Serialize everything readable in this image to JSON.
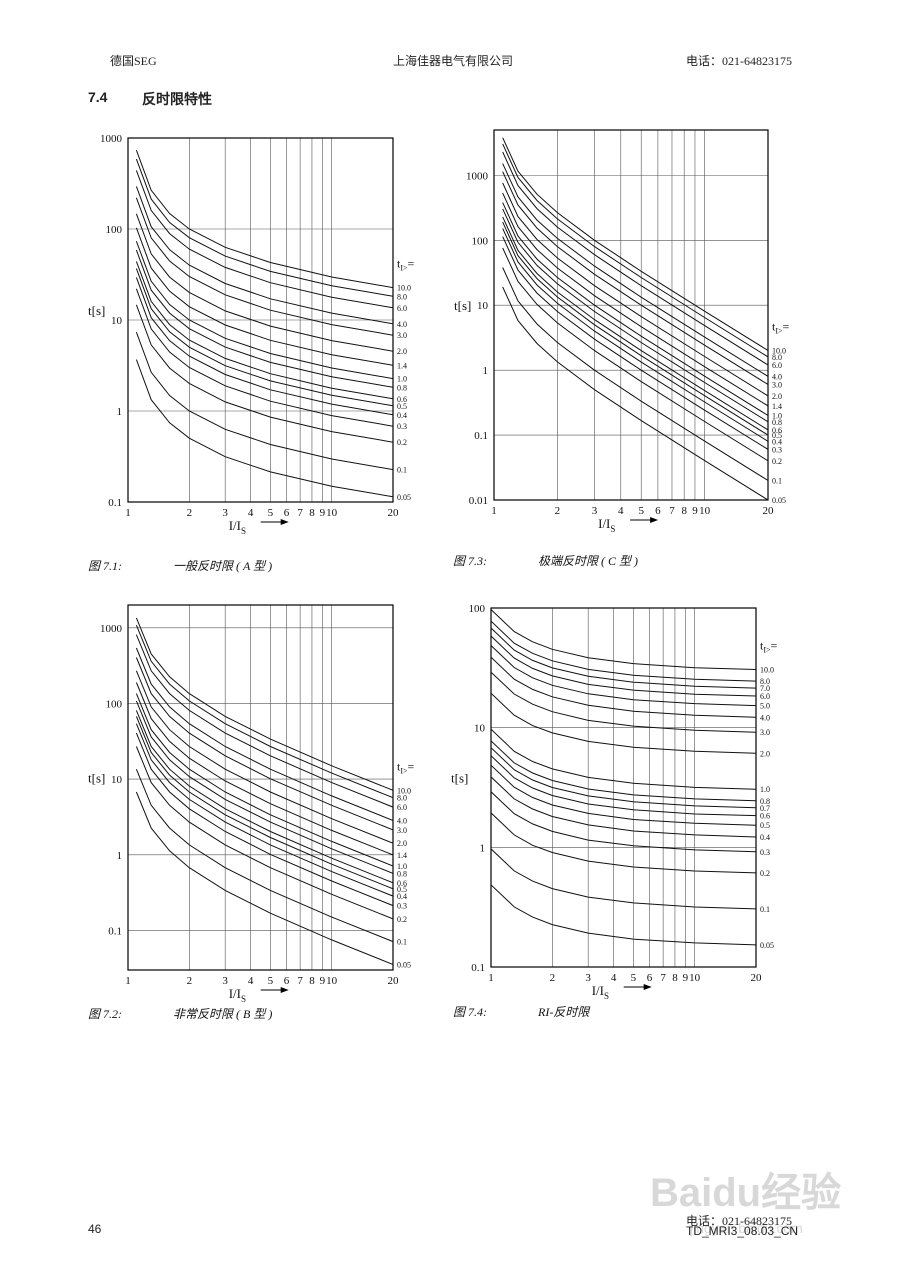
{
  "header": {
    "left": "德国SEG",
    "center": "上海佳器电气有限公司",
    "right": "电话：021-64823175"
  },
  "section": {
    "number": "7.4",
    "title": "反时限特性"
  },
  "footer": {
    "page": "46",
    "doc": "TD_MRI3_08.03_CN",
    "phone": "电话：021-64823175",
    "watermark": "Baidu经验",
    "watermark_url": "jingyan.baidu.com"
  },
  "chart_data": [
    {
      "type": "line",
      "caption_number": "图 7.1:",
      "caption_text": "一般反时限 ( A 型 )",
      "ylabel": "t[s]",
      "xlabel": {
        "base": "I/I",
        "sub": "S"
      },
      "legend_title": {
        "base": "t",
        "sub": "I>",
        "tail": "="
      },
      "log_x": true,
      "log_y": true,
      "grid": true,
      "color": "#111111",
      "xlim": [
        1,
        20
      ],
      "xticks": [
        1,
        2,
        3,
        4,
        5,
        6,
        7,
        8,
        9,
        10,
        20
      ],
      "ylim": [
        0.1,
        1000
      ],
      "yticks": [
        0.1,
        1,
        10,
        100,
        1000
      ],
      "x": [
        1.1,
        1.3,
        1.6,
        2,
        3,
        5,
        10,
        20
      ],
      "series": [
        {
          "name": "10.0",
          "values": [
            734,
            266,
            148,
            100,
            63.0,
            42.8,
            29.7,
            22.7
          ]
        },
        {
          "name": "8.0",
          "values": [
            587,
            213,
            118,
            80.2,
            50.4,
            34.2,
            23.8,
            18.2
          ]
        },
        {
          "name": "6.0",
          "values": [
            440,
            160,
            88.9,
            60.2,
            37.8,
            25.7,
            17.8,
            13.6
          ]
        },
        {
          "name": "4.0",
          "values": [
            294,
            106,
            59.3,
            40.1,
            25.2,
            17.1,
            11.9,
            9.08
          ]
        },
        {
          "name": "3.0",
          "values": [
            220,
            79.8,
            44.5,
            30.1,
            18.9,
            12.8,
            8.91,
            6.81
          ]
        },
        {
          "name": "2.0",
          "values": [
            147,
            53.2,
            29.6,
            20.1,
            12.6,
            8.56,
            5.94,
            4.54
          ]
        },
        {
          "name": "1.4",
          "values": [
            103,
            37.2,
            20.7,
            14.0,
            8.82,
            5.99,
            4.16,
            3.18
          ]
        },
        {
          "name": "1.0",
          "values": [
            73.4,
            26.6,
            14.8,
            10.0,
            6.3,
            4.28,
            2.97,
            2.27
          ]
        },
        {
          "name": "0.8",
          "values": [
            58.7,
            21.3,
            11.9,
            8.02,
            5.04,
            3.42,
            2.38,
            1.82
          ]
        },
        {
          "name": "0.6",
          "values": [
            44.0,
            16.0,
            8.89,
            6.02,
            3.78,
            2.57,
            1.78,
            1.36
          ]
        },
        {
          "name": "0.5",
          "values": [
            36.7,
            13.3,
            7.41,
            5.02,
            3.15,
            2.14,
            1.49,
            1.14
          ]
        },
        {
          "name": "0.4",
          "values": [
            29.4,
            10.6,
            5.93,
            4.01,
            2.52,
            1.71,
            1.19,
            0.908
          ]
        },
        {
          "name": "0.3",
          "values": [
            22.0,
            7.98,
            4.45,
            3.01,
            1.89,
            1.28,
            0.891,
            0.681
          ]
        },
        {
          "name": "0.2",
          "values": [
            14.7,
            5.32,
            2.96,
            2.01,
            1.26,
            0.856,
            0.594,
            0.454
          ]
        },
        {
          "name": "0.1",
          "values": [
            7.34,
            2.66,
            1.48,
            1.0,
            0.63,
            0.428,
            0.297,
            0.227
          ]
        },
        {
          "name": "0.05",
          "values": [
            3.67,
            1.33,
            0.741,
            0.502,
            0.315,
            0.214,
            0.149,
            0.114
          ]
        }
      ]
    },
    {
      "type": "line",
      "caption_number": "图 7.2:",
      "caption_text": "非常反时限 ( B 型 )",
      "ylabel": "t[s]",
      "xlabel": {
        "base": "I/I",
        "sub": "S"
      },
      "legend_title": {
        "base": "t",
        "sub": "I>",
        "tail": "="
      },
      "log_x": true,
      "log_y": true,
      "grid": true,
      "color": "#111111",
      "xlim": [
        1,
        20
      ],
      "xticks": [
        1,
        2,
        3,
        4,
        5,
        6,
        7,
        8,
        9,
        10,
        20
      ],
      "ylim": [
        0.03,
        2000
      ],
      "yticks": [
        0.1,
        1,
        10,
        100,
        1000
      ],
      "x": [
        1.1,
        1.3,
        1.6,
        2,
        3,
        5,
        10,
        20
      ],
      "series": [
        {
          "name": "10.0",
          "values": [
            1350,
            450,
            225,
            135,
            67.5,
            33.8,
            15,
            7.11
          ]
        },
        {
          "name": "8.0",
          "values": [
            1080,
            360,
            180,
            108,
            54,
            27,
            12,
            5.68
          ]
        },
        {
          "name": "6.0",
          "values": [
            810,
            270,
            135,
            81,
            40.5,
            20.3,
            9,
            4.26
          ]
        },
        {
          "name": "4.0",
          "values": [
            540,
            180,
            90,
            54,
            27,
            13.5,
            6,
            2.84
          ]
        },
        {
          "name": "3.0",
          "values": [
            405,
            135,
            67.5,
            40.5,
            20.3,
            10.1,
            4.5,
            2.13
          ]
        },
        {
          "name": "2.0",
          "values": [
            270,
            90,
            45,
            27,
            13.5,
            6.75,
            3,
            1.42
          ]
        },
        {
          "name": "1.4",
          "values": [
            189,
            63,
            31.5,
            18.9,
            9.45,
            4.73,
            2.1,
            0.995
          ]
        },
        {
          "name": "1.0",
          "values": [
            135,
            45,
            22.5,
            13.5,
            6.75,
            3.38,
            1.5,
            0.711
          ]
        },
        {
          "name": "0.8",
          "values": [
            108,
            36,
            18,
            10.8,
            5.4,
            2.7,
            1.2,
            0.568
          ]
        },
        {
          "name": "0.6",
          "values": [
            81,
            27,
            13.5,
            8.1,
            4.05,
            2.03,
            0.9,
            0.426
          ]
        },
        {
          "name": "0.5",
          "values": [
            67.5,
            22.5,
            11.3,
            6.75,
            3.38,
            1.69,
            0.75,
            0.355
          ]
        },
        {
          "name": "0.4",
          "values": [
            54,
            18,
            9,
            5.4,
            2.7,
            1.35,
            0.6,
            0.284
          ]
        },
        {
          "name": "0.3",
          "values": [
            40.5,
            13.5,
            6.75,
            4.05,
            2.03,
            1.01,
            0.45,
            0.213
          ]
        },
        {
          "name": "0.2",
          "values": [
            27,
            9,
            4.5,
            2.7,
            1.35,
            0.675,
            0.3,
            0.142
          ]
        },
        {
          "name": "0.1",
          "values": [
            13.5,
            4.5,
            2.25,
            1.35,
            0.675,
            0.338,
            0.15,
            0.0711
          ]
        },
        {
          "name": "0.05",
          "values": [
            6.75,
            2.25,
            1.13,
            0.675,
            0.338,
            0.169,
            0.075,
            0.0355
          ]
        }
      ]
    },
    {
      "type": "line",
      "caption_number": "图 7.3:",
      "caption_text": "极端反时限 ( C 型 )",
      "ylabel": "t[s]",
      "xlabel": {
        "base": "I/I",
        "sub": "S"
      },
      "legend_title": {
        "base": "t",
        "sub": "I>",
        "tail": "="
      },
      "log_x": true,
      "log_y": true,
      "grid": true,
      "color": "#111111",
      "xlim": [
        1,
        20
      ],
      "xticks": [
        1,
        2,
        3,
        4,
        5,
        6,
        7,
        8,
        9,
        10,
        20
      ],
      "ylim": [
        0.01,
        5000
      ],
      "yticks": [
        0.01,
        0.1,
        1,
        10,
        100,
        1000
      ],
      "x": [
        1.1,
        1.3,
        1.6,
        2,
        3,
        5,
        10,
        20
      ],
      "series": [
        {
          "name": "10.0",
          "values": [
            3810,
            1160,
            513,
            267,
            100,
            33.3,
            8.08,
            2.01
          ]
        },
        {
          "name": "8.0",
          "values": [
            3050,
            928,
            410,
            214,
            80,
            26.7,
            6.46,
            1.6
          ]
        },
        {
          "name": "6.0",
          "values": [
            2290,
            696,
            308,
            160,
            60,
            20,
            4.85,
            1.2
          ]
        },
        {
          "name": "4.0",
          "values": [
            1520,
            464,
            205,
            107,
            40,
            13.3,
            3.23,
            0.802
          ]
        },
        {
          "name": "3.0",
          "values": [
            1140,
            348,
            154,
            80.1,
            30,
            10,
            2.42,
            0.602
          ]
        },
        {
          "name": "2.0",
          "values": [
            762,
            232,
            103,
            53.4,
            20,
            6.67,
            1.62,
            0.401
          ]
        },
        {
          "name": "1.4",
          "values": [
            533,
            162,
            71.8,
            37.4,
            14,
            4.67,
            1.13,
            0.281
          ]
        },
        {
          "name": "1.0",
          "values": [
            381,
            116,
            51.3,
            26.7,
            10,
            3.33,
            0.808,
            0.2
          ]
        },
        {
          "name": "0.8",
          "values": [
            305,
            92.8,
            41,
            21.4,
            8,
            2.67,
            0.646,
            0.16
          ]
        },
        {
          "name": "0.6",
          "values": [
            229,
            69.6,
            30.8,
            16,
            6,
            2,
            0.485,
            0.12
          ]
        },
        {
          "name": "0.5",
          "values": [
            191,
            58,
            25.7,
            13.4,
            5,
            1.67,
            0.404,
            0.1
          ]
        },
        {
          "name": "0.4",
          "values": [
            152,
            46.4,
            20.5,
            10.7,
            4,
            1.33,
            0.323,
            0.0802
          ]
        },
        {
          "name": "0.3",
          "values": [
            114,
            34.8,
            15.4,
            8.01,
            3,
            1,
            0.242,
            0.0602
          ]
        },
        {
          "name": "0.2",
          "values": [
            76.2,
            23.2,
            10.3,
            5.34,
            2,
            0.667,
            0.162,
            0.0401
          ]
        },
        {
          "name": "0.1",
          "values": [
            38.1,
            11.6,
            5.13,
            2.67,
            1,
            0.333,
            0.0808,
            0.02
          ]
        },
        {
          "name": "0.05",
          "values": [
            19.1,
            5.8,
            2.57,
            1.34,
            0.5,
            0.167,
            0.0404,
            0.01
          ]
        }
      ]
    },
    {
      "type": "line",
      "caption_number": "图 7.4:",
      "caption_text": "RI-反时限",
      "ylabel": "t[s]",
      "xlabel": {
        "base": "I/I",
        "sub": "S"
      },
      "legend_title": {
        "base": "t",
        "sub": "I>",
        "tail": "="
      },
      "log_x": true,
      "log_y": true,
      "grid": true,
      "color": "#111111",
      "xlim": [
        1,
        20
      ],
      "xticks": [
        1,
        2,
        3,
        4,
        5,
        6,
        7,
        8,
        9,
        10,
        20
      ],
      "ylim": [
        0.1,
        100
      ],
      "yticks": [
        0.1,
        1,
        10,
        100
      ],
      "x": [
        1,
        1.3,
        1.6,
        2,
        3,
        5,
        10,
        20
      ],
      "series": [
        {
          "name": "10.0",
          "values": [
            97.1,
            63.5,
            52.2,
            45.2,
            38.4,
            34.3,
            31.7,
            30.6
          ]
        },
        {
          "name": "8.0",
          "values": [
            77.7,
            50.8,
            41.8,
            36.2,
            30.7,
            27.4,
            25.4,
            24.5
          ]
        },
        {
          "name": "7.0",
          "values": [
            68,
            44.5,
            36.5,
            31.6,
            26.9,
            24,
            22.2,
            21.4
          ]
        },
        {
          "name": "6.0",
          "values": [
            58.3,
            38.1,
            31.3,
            27.1,
            23,
            20.6,
            19,
            18.4
          ]
        },
        {
          "name": "5.0",
          "values": [
            48.6,
            31.8,
            26.1,
            22.6,
            19.2,
            17.1,
            15.9,
            15.3
          ]
        },
        {
          "name": "4.0",
          "values": [
            38.8,
            25.4,
            20.9,
            18.1,
            15.4,
            13.7,
            12.7,
            12.2
          ]
        },
        {
          "name": "3.0",
          "values": [
            29.1,
            19.1,
            15.7,
            13.6,
            11.5,
            10.3,
            9.51,
            9.17
          ]
        },
        {
          "name": "2.0",
          "values": [
            19.4,
            12.7,
            10.4,
            9.05,
            7.68,
            6.85,
            6.34,
            6.11
          ]
        },
        {
          "name": "1.0",
          "values": [
            9.71,
            6.35,
            5.22,
            4.52,
            3.84,
            3.43,
            3.17,
            3.06
          ]
        },
        {
          "name": "0.8",
          "values": [
            7.77,
            5.08,
            4.18,
            3.62,
            3.07,
            2.74,
            2.54,
            2.45
          ]
        },
        {
          "name": "0.7",
          "values": [
            6.8,
            4.45,
            3.65,
            3.16,
            2.69,
            2.4,
            2.22,
            2.14
          ]
        },
        {
          "name": "0.6",
          "values": [
            5.83,
            3.81,
            3.13,
            2.71,
            2.3,
            2.06,
            1.9,
            1.84
          ]
        },
        {
          "name": "0.5",
          "values": [
            4.86,
            3.18,
            2.61,
            2.26,
            1.92,
            1.71,
            1.59,
            1.53
          ]
        },
        {
          "name": "0.4",
          "values": [
            3.88,
            2.54,
            2.09,
            1.81,
            1.54,
            1.37,
            1.27,
            1.22
          ]
        },
        {
          "name": "0.3",
          "values": [
            2.91,
            1.91,
            1.57,
            1.36,
            1.15,
            1.03,
            0.951,
            0.917
          ]
        },
        {
          "name": "0.2",
          "values": [
            1.94,
            1.27,
            1.04,
            0.905,
            0.768,
            0.685,
            0.634,
            0.611
          ]
        },
        {
          "name": "0.1",
          "values": [
            0.971,
            0.635,
            0.522,
            0.452,
            0.384,
            0.343,
            0.317,
            0.306
          ]
        },
        {
          "name": "0.05",
          "values": [
            0.486,
            0.318,
            0.261,
            0.226,
            0.192,
            0.171,
            0.159,
            0.153
          ]
        }
      ]
    }
  ]
}
